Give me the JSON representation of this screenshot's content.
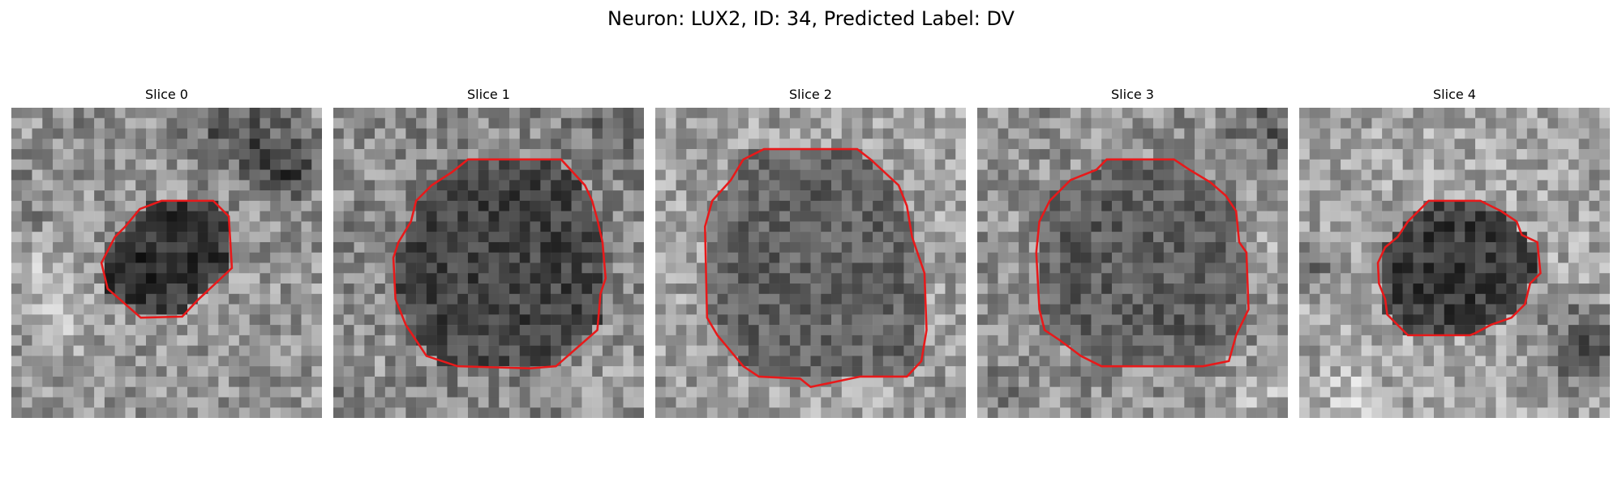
{
  "figure": {
    "title": "Neuron: LUX2, ID: 34, Predicted Label: DV"
  },
  "colors": {
    "contour": "#e8191a",
    "background": "#ffffff"
  },
  "image": {
    "grid_size": 30,
    "colormap": "gray"
  },
  "panels": [
    {
      "title": "Slice 0",
      "contour": [
        [
          14.5,
          9.0
        ],
        [
          19.5,
          9.0
        ],
        [
          21.0,
          10.5
        ],
        [
          21.3,
          15.5
        ],
        [
          18.0,
          18.6
        ],
        [
          16.5,
          20.2
        ],
        [
          12.5,
          20.3
        ],
        [
          9.3,
          17.5
        ],
        [
          8.7,
          15.0
        ],
        [
          10.0,
          12.5
        ],
        [
          11.0,
          11.5
        ],
        [
          12.4,
          9.8
        ]
      ]
    },
    {
      "title": "Slice 1",
      "contour": [
        [
          13.0,
          5.0
        ],
        [
          22.0,
          5.0
        ],
        [
          24.3,
          7.5
        ],
        [
          25.0,
          9.0
        ],
        [
          25.5,
          10.8
        ],
        [
          26.0,
          13.0
        ],
        [
          26.3,
          16.5
        ],
        [
          25.8,
          18.0
        ],
        [
          25.5,
          21.5
        ],
        [
          21.5,
          25.0
        ],
        [
          19.0,
          25.2
        ],
        [
          12.0,
          25.0
        ],
        [
          9.0,
          24.0
        ],
        [
          8.0,
          22.5
        ],
        [
          7.0,
          21.0
        ],
        [
          6.0,
          18.5
        ],
        [
          5.8,
          14.5
        ],
        [
          6.3,
          13.0
        ],
        [
          7.5,
          11.0
        ],
        [
          8.0,
          9.0
        ],
        [
          9.5,
          7.5
        ],
        [
          11.5,
          6.2
        ]
      ]
    },
    {
      "title": "Slice 2",
      "contour": [
        [
          10.5,
          4.0
        ],
        [
          19.5,
          4.0
        ],
        [
          20.8,
          5.0
        ],
        [
          23.5,
          7.5
        ],
        [
          24.3,
          9.5
        ],
        [
          24.8,
          12.5
        ],
        [
          26.0,
          16.0
        ],
        [
          26.2,
          21.5
        ],
        [
          25.7,
          24.5
        ],
        [
          24.3,
          26.0
        ],
        [
          19.8,
          26.0
        ],
        [
          15.0,
          27.0
        ],
        [
          14.0,
          26.2
        ],
        [
          10.0,
          26.0
        ],
        [
          8.5,
          25.0
        ],
        [
          6.0,
          22.0
        ],
        [
          5.0,
          20.3
        ],
        [
          4.8,
          11.5
        ],
        [
          5.5,
          9.0
        ],
        [
          7.3,
          7.0
        ],
        [
          8.5,
          5.0
        ]
      ]
    },
    {
      "title": "Slice 3",
      "contour": [
        [
          12.5,
          5.0
        ],
        [
          19.0,
          5.0
        ],
        [
          20.5,
          6.0
        ],
        [
          22.5,
          7.2
        ],
        [
          24.0,
          8.5
        ],
        [
          25.0,
          10.0
        ],
        [
          25.3,
          13.0
        ],
        [
          26.0,
          14.0
        ],
        [
          26.2,
          19.5
        ],
        [
          25.0,
          22.0
        ],
        [
          24.3,
          24.5
        ],
        [
          21.8,
          25.0
        ],
        [
          12.0,
          25.0
        ],
        [
          10.0,
          24.0
        ],
        [
          8.0,
          22.5
        ],
        [
          6.5,
          21.5
        ],
        [
          6.0,
          19.5
        ],
        [
          5.7,
          14.0
        ],
        [
          6.0,
          11.0
        ],
        [
          7.0,
          9.0
        ],
        [
          9.0,
          7.0
        ],
        [
          11.5,
          6.0
        ]
      ]
    },
    {
      "title": "Slice 4",
      "contour": [
        [
          12.5,
          9.0
        ],
        [
          17.5,
          9.0
        ],
        [
          19.5,
          10.0
        ],
        [
          21.0,
          11.0
        ],
        [
          21.5,
          12.3
        ],
        [
          23.0,
          13.0
        ],
        [
          23.3,
          16.0
        ],
        [
          22.3,
          17.0
        ],
        [
          21.8,
          19.0
        ],
        [
          20.5,
          20.3
        ],
        [
          18.5,
          21.0
        ],
        [
          17.0,
          21.8
        ],
        [
          16.5,
          22.0
        ],
        [
          10.5,
          22.0
        ],
        [
          9.5,
          21.0
        ],
        [
          8.5,
          20.0
        ],
        [
          8.3,
          18.5
        ],
        [
          7.7,
          17.0
        ],
        [
          7.6,
          15.0
        ],
        [
          8.3,
          13.5
        ],
        [
          9.5,
          12.5
        ],
        [
          10.5,
          11.0
        ]
      ]
    }
  ]
}
